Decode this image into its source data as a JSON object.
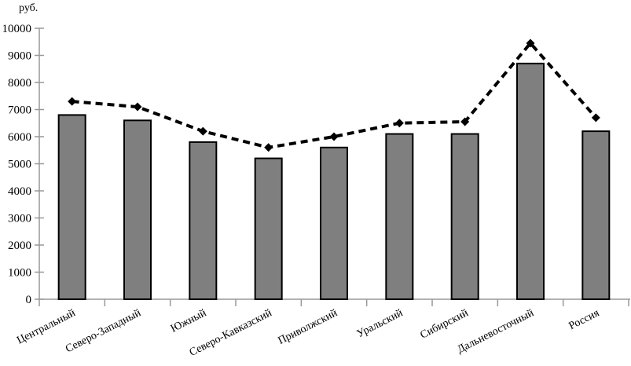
{
  "chart_data": {
    "type": "bar",
    "ylabel": "руб.",
    "categories": [
      "Центральный",
      "Северо-Западный",
      "Южный",
      "Северо-Кавказский",
      "Приволжский",
      "Уральский",
      "Сибирский",
      "Дальневосточный",
      "Россия"
    ],
    "series": [
      {
        "name": "bar-series",
        "type": "bar",
        "values": [
          6800,
          6600,
          5800,
          5200,
          5600,
          6100,
          6100,
          8700,
          6200
        ]
      },
      {
        "name": "line-series",
        "type": "line",
        "values": [
          7300,
          7100,
          6200,
          5600,
          6000,
          6500,
          6550,
          9450,
          6700
        ]
      }
    ],
    "ylim": [
      0,
      10000
    ],
    "ytick_step": 1000,
    "yticks": [
      0,
      1000,
      2000,
      3000,
      4000,
      5000,
      6000,
      7000,
      8000,
      9000,
      10000
    ],
    "grid": false,
    "legend_position": "none",
    "colors": {
      "bar_fill": "#7f7f7f",
      "bar_stroke": "#000000",
      "line": "#000000",
      "marker": "#000000",
      "axis": "#999999",
      "text": "#000000"
    }
  }
}
